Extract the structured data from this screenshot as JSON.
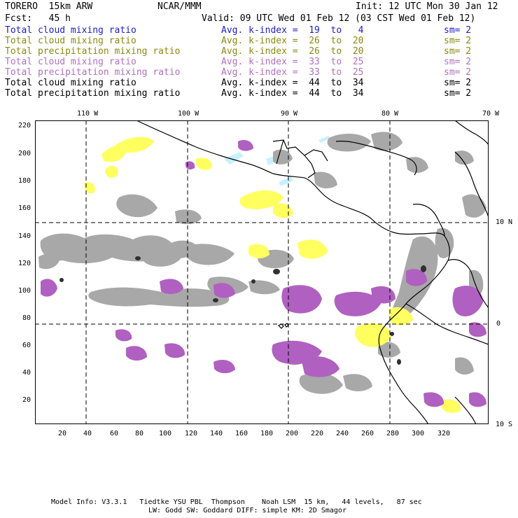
{
  "header": {
    "model": "TORERO  15km ARW",
    "org": "NCAR/MMM",
    "init": "Init: 12 UTC Mon 30 Jan 12",
    "fcst": "Fcst:   45 h",
    "valid": "Valid: 09 UTC Wed 01 Feb 12 (03 CST Wed 01 Feb 12)"
  },
  "legend": [
    {
      "field": "Total cloud mixing ratio",
      "kindex": "Avg. k-index =  19  to   4",
      "sm": "sm= 2",
      "color": "#2020c8"
    },
    {
      "field": "Total cloud mixing ratio",
      "kindex": "Avg. k-index =  26  to  20",
      "sm": "sm= 2",
      "color": "#8a8a10"
    },
    {
      "field": "Total precipitation mixing ratio",
      "kindex": "Avg. k-index =  26  to  20",
      "sm": "sm= 2",
      "color": "#8a8a10"
    },
    {
      "field": "Total cloud mixing ratio",
      "kindex": "Avg. k-index =  33  to  25",
      "sm": "sm= 2",
      "color": "#b070c0"
    },
    {
      "field": "Total precipitation mixing ratio",
      "kindex": "Avg. k-index =  33  to  25",
      "sm": "sm= 2",
      "color": "#b070c0"
    },
    {
      "field": "Total cloud mixing ratio",
      "kindex": "Avg. k-index =  44  to  34",
      "sm": "sm= 2",
      "color": "#000000"
    },
    {
      "field": "Total precipitation mixing ratio",
      "kindex": "Avg. k-index =  44  to  34",
      "sm": "sm= 2",
      "color": "#000000"
    }
  ],
  "longitude_labels": [
    "110 W",
    "100 W",
    "90 W",
    "80 W",
    "70 W"
  ],
  "latitude_labels": [
    "10 N",
    "0",
    "10 S"
  ],
  "y_ticks": [
    "220",
    "200",
    "180",
    "160",
    "140",
    "120",
    "100",
    "80",
    "60",
    "40",
    "20"
  ],
  "x_ticks": [
    "20",
    "40",
    "60",
    "80",
    "100",
    "120",
    "140",
    "160",
    "180",
    "200",
    "220",
    "240",
    "260",
    "280",
    "300",
    "320"
  ],
  "footer": {
    "line1": "Model Info: V3.3.1   Tiedtke YSU PBL  Thompson    Noah LSM  15 km,   44 levels,   87 sec",
    "line2": "LW: Godd SW: Goddard DIFF: simple KM: 2D Smagor"
  },
  "colors": {
    "gray": "#a0a0a0",
    "dark": "#303030",
    "yellow": "#ffff60",
    "purple": "#b060c0",
    "cyan": "#c8f0ff"
  }
}
